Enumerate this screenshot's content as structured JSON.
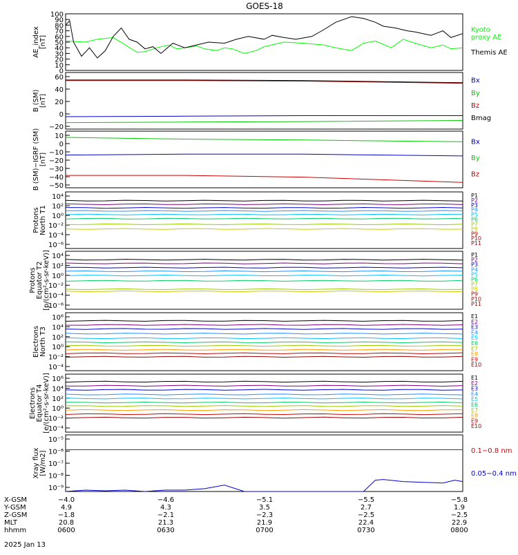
{
  "title": "GOES-18",
  "date_label": "2025 Jan 13",
  "colors": {
    "axis": "#000000",
    "black": "#000000",
    "green": "#00ff00",
    "blue": "#0000cc",
    "red": "#cc0000"
  },
  "chart_data": [
    {
      "type": "line",
      "panel": "ae-index",
      "ylabel": "AE_index\n[nT]",
      "ylim": [
        0,
        100
      ],
      "yticks": [
        "0",
        "10",
        "20",
        "30",
        "40",
        "50",
        "60",
        "70",
        "80",
        "90",
        "100"
      ],
      "legend": [
        {
          "label": "Kyoto\nproxy AE",
          "color": "#00ff00"
        },
        {
          "label": "Themis AE",
          "color": "#000000"
        }
      ],
      "series": [
        {
          "name": "Kyoto proxy AE",
          "color": "#00ff00",
          "x": [
            0,
            0.05,
            0.08,
            0.12,
            0.15,
            0.18,
            0.2,
            0.23,
            0.26,
            0.28,
            0.3,
            0.33,
            0.35,
            0.38,
            0.4,
            0.42,
            0.45,
            0.48,
            0.5,
            0.55,
            0.6,
            0.65,
            0.68,
            0.72,
            0.75,
            0.78,
            0.82,
            0.85,
            0.88,
            0.92,
            0.95,
            0.97,
            1.0
          ],
          "y": [
            52,
            50,
            55,
            58,
            45,
            32,
            33,
            40,
            45,
            38,
            40,
            43,
            38,
            35,
            40,
            38,
            30,
            35,
            42,
            50,
            48,
            45,
            40,
            35,
            48,
            52,
            40,
            55,
            48,
            40,
            45,
            38,
            40
          ]
        },
        {
          "name": "Themis AE",
          "color": "#000000",
          "x": [
            0,
            0.01,
            0.02,
            0.04,
            0.06,
            0.08,
            0.1,
            0.12,
            0.14,
            0.16,
            0.18,
            0.2,
            0.22,
            0.24,
            0.27,
            0.3,
            0.33,
            0.36,
            0.4,
            0.43,
            0.46,
            0.5,
            0.52,
            0.55,
            0.58,
            0.62,
            0.65,
            0.68,
            0.72,
            0.75,
            0.78,
            0.8,
            0.83,
            0.86,
            0.88,
            0.9,
            0.92,
            0.95,
            0.97,
            1.0
          ],
          "y": [
            80,
            88,
            50,
            25,
            40,
            22,
            35,
            60,
            75,
            55,
            50,
            38,
            42,
            30,
            48,
            40,
            45,
            50,
            48,
            55,
            60,
            55,
            62,
            58,
            55,
            60,
            72,
            85,
            95,
            92,
            85,
            78,
            75,
            70,
            68,
            65,
            62,
            70,
            58,
            65
          ]
        }
      ]
    },
    {
      "type": "line",
      "panel": "b-sm",
      "ylabel": "B (SM)\n[nT]",
      "ylim": [
        -25,
        80
      ],
      "yticks": [
        "−20",
        "0",
        "20",
        "40",
        "60"
      ],
      "legend": [
        {
          "label": "Bx",
          "color": "#0000cc"
        },
        {
          "label": "By",
          "color": "#00cc00"
        },
        {
          "label": "Bz",
          "color": "#cc0000"
        },
        {
          "label": "Bmag",
          "color": "#000000"
        }
      ],
      "series": [
        {
          "name": "Bx",
          "color": "#0000cc",
          "x": [
            0,
            0.3,
            0.6,
            1.0
          ],
          "y": [
            -2,
            -1,
            0,
            0
          ]
        },
        {
          "name": "By",
          "color": "#00cc00",
          "x": [
            0,
            0.3,
            0.6,
            1.0
          ],
          "y": [
            -13,
            -12,
            -11,
            -9
          ]
        },
        {
          "name": "Bz",
          "color": "#cc0000",
          "x": [
            0,
            0.3,
            0.6,
            1.0
          ],
          "y": [
            65,
            65,
            64,
            60
          ]
        },
        {
          "name": "Bmag",
          "color": "#000000",
          "x": [
            0,
            0.3,
            0.6,
            1.0
          ],
          "y": [
            66,
            66,
            65,
            61
          ]
        }
      ]
    },
    {
      "type": "line",
      "panel": "b-sm-igrf",
      "ylabel": "B (SM)−IGRF (SM)\n[nT]",
      "ylim": [
        -52,
        12
      ],
      "yticks": [
        "−50",
        "−40",
        "−30",
        "−20",
        "−10",
        "0",
        "10"
      ],
      "legend": [
        {
          "label": "Bx",
          "color": "#0000cc"
        },
        {
          "label": "By",
          "color": "#00cc00"
        },
        {
          "label": "Bz",
          "color": "#cc0000"
        }
      ],
      "series": [
        {
          "name": "Bx",
          "color": "#0000cc",
          "x": [
            0,
            0.3,
            0.6,
            1.0
          ],
          "y": [
            -15,
            -14,
            -14,
            -16
          ]
        },
        {
          "name": "By",
          "color": "#00cc00",
          "x": [
            0,
            0.3,
            0.6,
            1.0
          ],
          "y": [
            5,
            3,
            2,
            0
          ]
        },
        {
          "name": "Bz",
          "color": "#cc0000",
          "x": [
            0,
            0.3,
            0.6,
            1.0
          ],
          "y": [
            -38,
            -38,
            -40,
            -46
          ]
        }
      ]
    },
    {
      "type": "line",
      "panel": "protons-north-t1",
      "ylabel": "Protons\nNorth T1",
      "scale": "log",
      "ylim": [
        -7,
        4
      ],
      "yticks": [
        "10⁴",
        "10²",
        "10⁰",
        "10⁻²",
        "10⁻⁴",
        "10⁻⁶"
      ],
      "legend": [
        "P1",
        "P2",
        "P3",
        "P4",
        "P5",
        "P6",
        "P7",
        "P8",
        "P9",
        "P10",
        "P11"
      ],
      "series": [
        {
          "name": "P1",
          "color": "#000000",
          "logy": 2.3
        },
        {
          "name": "P2",
          "color": "#800080",
          "logy": 1.6
        },
        {
          "name": "P3",
          "color": "#0000cc",
          "logy": 0.9
        },
        {
          "name": "P4",
          "color": "#1e90ff",
          "logy": 0.3
        },
        {
          "name": "P5",
          "color": "#00bfff",
          "logy": -0.4
        },
        {
          "name": "P6",
          "color": "#00cc66",
          "logy": -1.2
        },
        {
          "name": "P7",
          "color": "#99cc00",
          "logy": -2.3
        },
        {
          "name": "P8",
          "color": "#cccc00",
          "logy": -3.2
        }
      ]
    },
    {
      "type": "line",
      "panel": "protons-equator-t2",
      "ylabel": "Protons\nEquator T2\n[p/(cm²-s-sr-keV)]",
      "scale": "log",
      "ylim": [
        -7,
        4
      ],
      "yticks": [
        "10⁴",
        "10²",
        "10⁰",
        "10⁻²",
        "10⁻⁴",
        "10⁻⁶"
      ],
      "legend": [
        "P1",
        "P2",
        "P3",
        "P4",
        "P5",
        "P6",
        "P7",
        "P8",
        "P9",
        "P10",
        "P11"
      ],
      "series": [
        {
          "name": "P1",
          "color": "#000000",
          "logy": 2.4
        },
        {
          "name": "P2",
          "color": "#800080",
          "logy": 1.7
        },
        {
          "name": "P3",
          "color": "#0000cc",
          "logy": 0.9
        },
        {
          "name": "P4",
          "color": "#1e90ff",
          "logy": 0.2
        },
        {
          "name": "P5",
          "color": "#00bfff",
          "logy": -0.6
        },
        {
          "name": "P6",
          "color": "#00cc66",
          "logy": -1.6
        },
        {
          "name": "P7",
          "color": "#99cc00",
          "logy": -3.2
        },
        {
          "name": "P8",
          "color": "#cccc00",
          "logy": -3.6
        }
      ]
    },
    {
      "type": "line",
      "panel": "electrons-north-t3",
      "ylabel": "Electrons\nNorth T3",
      "scale": "log",
      "ylim": [
        -4,
        6
      ],
      "yticks": [
        "10⁶",
        "10⁴",
        "10²",
        "10⁰",
        "10⁻²",
        "10⁻⁴"
      ],
      "legend": [
        "E1",
        "E2",
        "E3",
        "E4",
        "E5",
        "E6",
        "E7",
        "E8",
        "E9",
        "E10"
      ],
      "series": [
        {
          "name": "E1",
          "color": "#000000",
          "logy": 4.6
        },
        {
          "name": "E2",
          "color": "#800080",
          "logy": 3.9
        },
        {
          "name": "E3",
          "color": "#0000cc",
          "logy": 3.2
        },
        {
          "name": "E4",
          "color": "#1e90ff",
          "logy": 2.4
        },
        {
          "name": "E5",
          "color": "#00bfff",
          "logy": 1.6
        },
        {
          "name": "E6",
          "color": "#00cc66",
          "logy": 0.9
        },
        {
          "name": "E7",
          "color": "#99cc00",
          "logy": 0.3
        },
        {
          "name": "E8",
          "color": "#ff9900",
          "logy": -0.4
        },
        {
          "name": "E9",
          "color": "#cc0000",
          "logy": -1.0
        },
        {
          "name": "E10",
          "color": "#990000",
          "logy": -1.6
        }
      ]
    },
    {
      "type": "line",
      "panel": "electrons-equator-t4",
      "ylabel": "Electrons\nEquator T4\n[e/(cm²-s-sr-keV)]",
      "scale": "log",
      "ylim": [
        -4,
        6
      ],
      "yticks": [
        "10⁶",
        "10⁴",
        "10²",
        "10⁰",
        "10⁻²",
        "10⁻⁴"
      ],
      "legend": [
        "E1",
        "E2",
        "E3",
        "E4",
        "E5",
        "E6",
        "E7",
        "E8",
        "E9",
        "E10"
      ],
      "series": [
        {
          "name": "E1",
          "color": "#000000",
          "logy": 4.7
        },
        {
          "name": "E2",
          "color": "#800080",
          "logy": 4.0
        },
        {
          "name": "E3",
          "color": "#0000cc",
          "logy": 3.3
        },
        {
          "name": "E4",
          "color": "#1e90ff",
          "logy": 2.5
        },
        {
          "name": "E5",
          "color": "#00bfff",
          "logy": 1.8
        },
        {
          "name": "E6",
          "color": "#00cc66",
          "logy": 1.1
        },
        {
          "name": "E7",
          "color": "#99cc00",
          "logy": 0.5
        },
        {
          "name": "E8",
          "color": "#ff9900",
          "logy": -0.2
        },
        {
          "name": "E9",
          "color": "#cc0000",
          "logy": -0.9
        },
        {
          "name": "E10",
          "color": "#990000",
          "logy": -1.5
        }
      ]
    },
    {
      "type": "line",
      "panel": "xray-flux",
      "ylabel": "Xray flux\n[W/m2]",
      "scale": "log",
      "ylim": [
        -9,
        -5
      ],
      "yticks": [
        "10⁻⁵",
        "10⁻⁶",
        "10⁻⁷",
        "10⁻⁸",
        "10⁻⁹"
      ],
      "legend": [
        {
          "label": "0.1−0.8 nm",
          "color": "#cc0000"
        },
        {
          "label": "0.05−0.4 nm",
          "color": "#0000cc"
        }
      ],
      "series": [
        {
          "name": "0.1−0.8 nm",
          "color": "#cc0000",
          "x": [
            0,
            0.5,
            1.0
          ],
          "logy": [
            -6.05,
            -6.05,
            -6.05
          ]
        },
        {
          "name": "0.05−0.4 nm",
          "color": "#0000cc",
          "x": [
            0,
            0.05,
            0.1,
            0.15,
            0.2,
            0.25,
            0.3,
            0.35,
            0.4,
            0.45,
            0.5,
            0.55,
            0.6,
            0.65,
            0.7,
            0.75,
            0.78,
            0.8,
            0.85,
            0.9,
            0.95,
            0.98,
            1.0
          ],
          "logy": [
            -9,
            -8.9,
            -8.95,
            -8.9,
            -9,
            -8.9,
            -8.9,
            -8.8,
            -8.55,
            -9,
            -9,
            -9,
            -9,
            -9,
            -9,
            -9,
            -8.2,
            -8.15,
            -8.3,
            -8.35,
            -8.4,
            -8.2,
            -8.3
          ]
        }
      ]
    }
  ],
  "x_axis": {
    "rows": [
      {
        "label": "X-GSM",
        "values": [
          "−4.0",
          "−4.6",
          "−5.1",
          "−5.5",
          "−5.8"
        ]
      },
      {
        "label": "Y-GSM",
        "values": [
          "4.9",
          "4.3",
          "3.5",
          "2.7",
          "1.9"
        ]
      },
      {
        "label": "Z-GSM",
        "values": [
          "−1.8",
          "−2.1",
          "−2.3",
          "−2.5",
          "−2.5"
        ]
      },
      {
        "label": "MLT",
        "values": [
          "20.8",
          "21.3",
          "21.9",
          "22.4",
          "22.9"
        ]
      },
      {
        "label": "hhmm",
        "values": [
          "0600",
          "0630",
          "0700",
          "0730",
          "0800"
        ]
      }
    ]
  }
}
